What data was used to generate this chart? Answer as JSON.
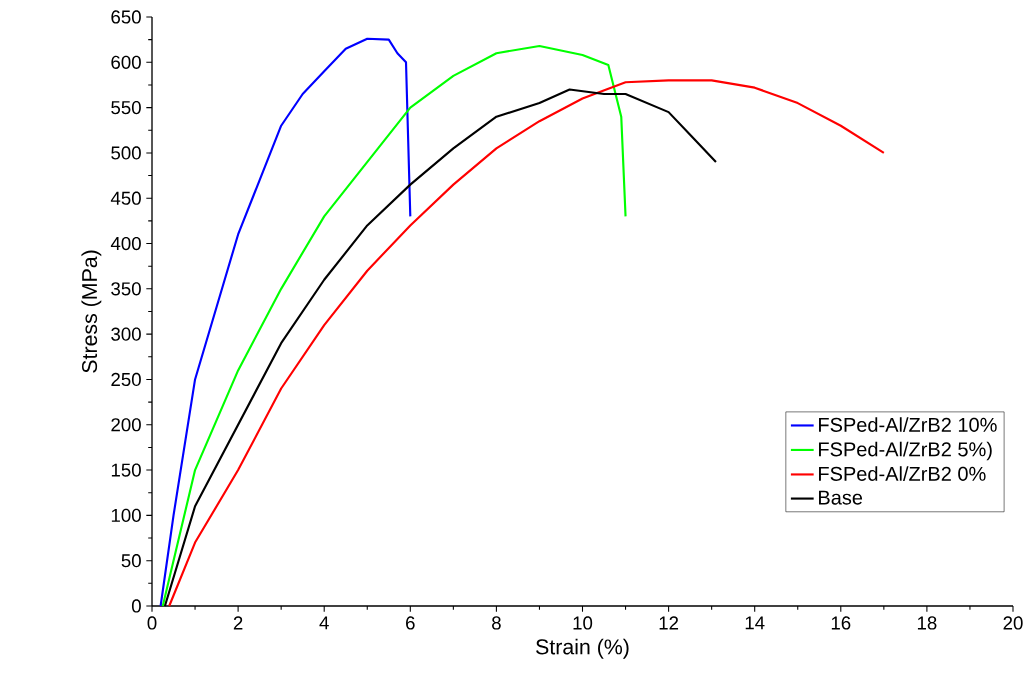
{
  "chart_data": {
    "type": "line",
    "xlabel": "Strain (%)",
    "ylabel": "Stress (MPa)",
    "xlim": [
      0,
      20
    ],
    "ylim": [
      0,
      650
    ],
    "xticks": [
      0,
      2,
      4,
      6,
      8,
      10,
      12,
      14,
      16,
      18,
      20
    ],
    "yticks": [
      0,
      50,
      100,
      150,
      200,
      250,
      300,
      350,
      400,
      450,
      500,
      550,
      600,
      650
    ],
    "grid": false,
    "legend": "right",
    "marker": "none",
    "line_style": "solid",
    "series": [
      {
        "name": "FSPed-Al/ZrB2 10%",
        "color": "#0000ff",
        "x": [
          0.2,
          0.5,
          1,
          1.5,
          2,
          2.5,
          3,
          3.5,
          4,
          4.5,
          5,
          5.5,
          5.7,
          5.9,
          6.0
        ],
        "values": [
          0,
          100,
          250,
          330,
          410,
          470,
          530,
          565,
          590,
          615,
          626,
          625,
          610,
          600,
          430
        ]
      },
      {
        "name": "FSPed-Al/ZrB2 5%)",
        "color": "#00ff00",
        "x": [
          0.25,
          1,
          2,
          3,
          4,
          5,
          6,
          7,
          8,
          9,
          10,
          10.6,
          10.9,
          11
        ],
        "values": [
          0,
          150,
          260,
          350,
          430,
          490,
          550,
          585,
          610,
          618,
          608,
          597,
          540,
          430
        ]
      },
      {
        "name": "FSPed-Al/ZrB2 0%",
        "color": "#ff0000",
        "x": [
          0.4,
          1,
          2,
          3,
          4,
          5,
          6,
          7,
          8,
          9,
          10,
          11,
          12,
          13,
          14,
          15,
          16,
          17
        ],
        "values": [
          0,
          70,
          150,
          240,
          310,
          370,
          420,
          465,
          505,
          535,
          560,
          578,
          580,
          580,
          572,
          555,
          530,
          500
        ]
      },
      {
        "name": "Base",
        "color": "#000000",
        "x": [
          0.3,
          1,
          2,
          3,
          4,
          5,
          6,
          7,
          8,
          9,
          9.7,
          10.5,
          11,
          12,
          12.5,
          13.1
        ],
        "values": [
          0,
          110,
          200,
          290,
          360,
          420,
          465,
          505,
          540,
          555,
          570,
          565,
          565,
          545,
          520,
          490
        ]
      }
    ]
  }
}
